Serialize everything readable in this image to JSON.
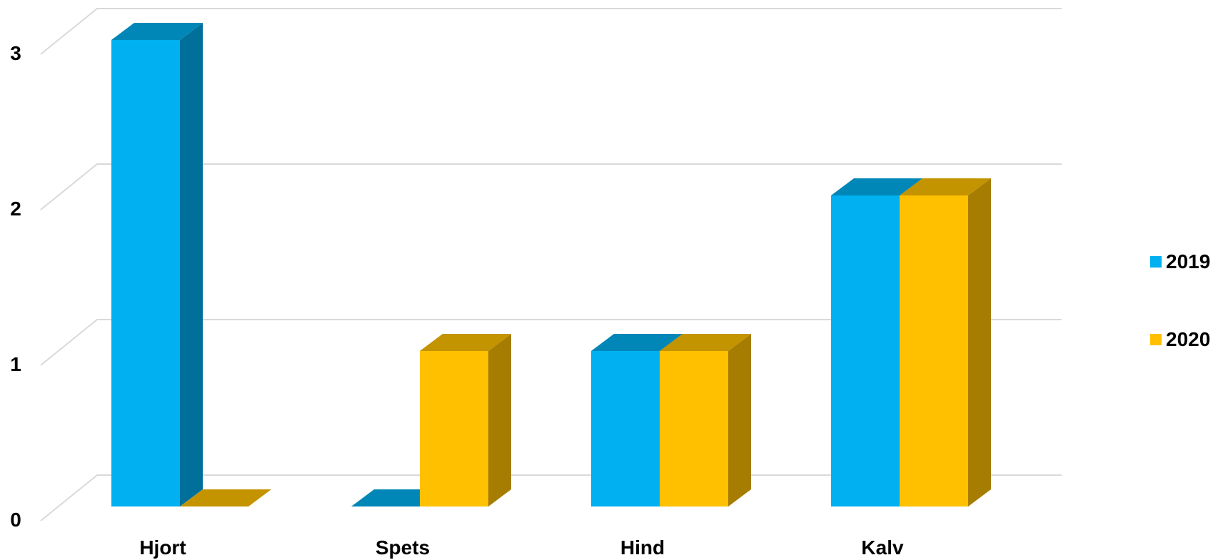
{
  "chart_data": {
    "type": "bar",
    "title": "",
    "xlabel": "",
    "ylabel": "",
    "categories": [
      "Hjort",
      "Spets",
      "Hind",
      "Kalv"
    ],
    "series": [
      {
        "name": "2019",
        "values": [
          3,
          0,
          1,
          2
        ]
      },
      {
        "name": "2020",
        "values": [
          0,
          1,
          1,
          2
        ]
      }
    ],
    "yticks": [
      "0",
      "1",
      "2",
      "3"
    ],
    "ylim": [
      0,
      3
    ],
    "grid": true,
    "legend": "right",
    "three_d": true,
    "colors": {
      "2019_front": "#00b0f0",
      "2019_top": "#0087b8",
      "2019_side": "#00709a",
      "2020_front": "#ffc000",
      "2020_top": "#c49400",
      "2020_side": "#a67d00",
      "grid": "#d9d9d9"
    }
  }
}
